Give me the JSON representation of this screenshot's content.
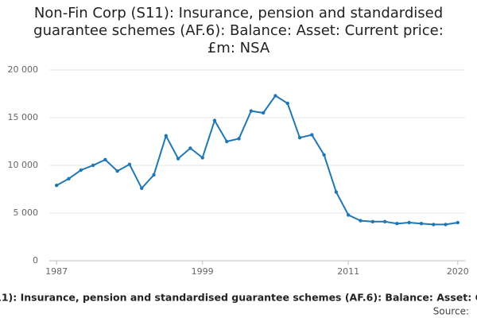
{
  "chart_data": {
    "type": "line",
    "title": "Non-Fin Corp (S11): Insurance, pension and standardised guarantee schemes (AF.6): Balance: Asset: Current price: £m: NSA",
    "x": [
      1987,
      1988,
      1989,
      1990,
      1991,
      1992,
      1993,
      1994,
      1995,
      1996,
      1997,
      1998,
      1999,
      2000,
      2001,
      2002,
      2003,
      2004,
      2005,
      2006,
      2007,
      2008,
      2009,
      2010,
      2011,
      2012,
      2013,
      2014,
      2015,
      2016,
      2017,
      2018,
      2019,
      2020
    ],
    "series": [
      {
        "name": "Non-Fin Corp (S11): Insurance, pension and standardised guarantee schemes (AF.6): Balance: Asset: Current price: £m: NSA",
        "color": "#1f77b4",
        "values": [
          7900,
          8600,
          9500,
          10000,
          10600,
          9400,
          10100,
          7600,
          9000,
          13100,
          10700,
          11800,
          10800,
          14700,
          12500,
          12800,
          15700,
          15500,
          17300,
          16500,
          12900,
          13200,
          11100,
          7200,
          4800,
          4200,
          4100,
          4100,
          3900,
          4000,
          3900,
          3800,
          3800,
          4000
        ]
      }
    ],
    "xlim": [
      1986.4,
      2020.6
    ],
    "xticks": [
      1987,
      1999,
      2011,
      2020
    ],
    "ylim": [
      0,
      20000
    ],
    "yticks": [
      0,
      {
        "value": 5000,
        "label": "5 000"
      },
      {
        "value": 10000,
        "label": "10 000"
      },
      {
        "value": 15000,
        "label": "15 000"
      },
      {
        "value": 20000,
        "label": "20 000"
      }
    ],
    "grid": true,
    "source": "Source:"
  }
}
